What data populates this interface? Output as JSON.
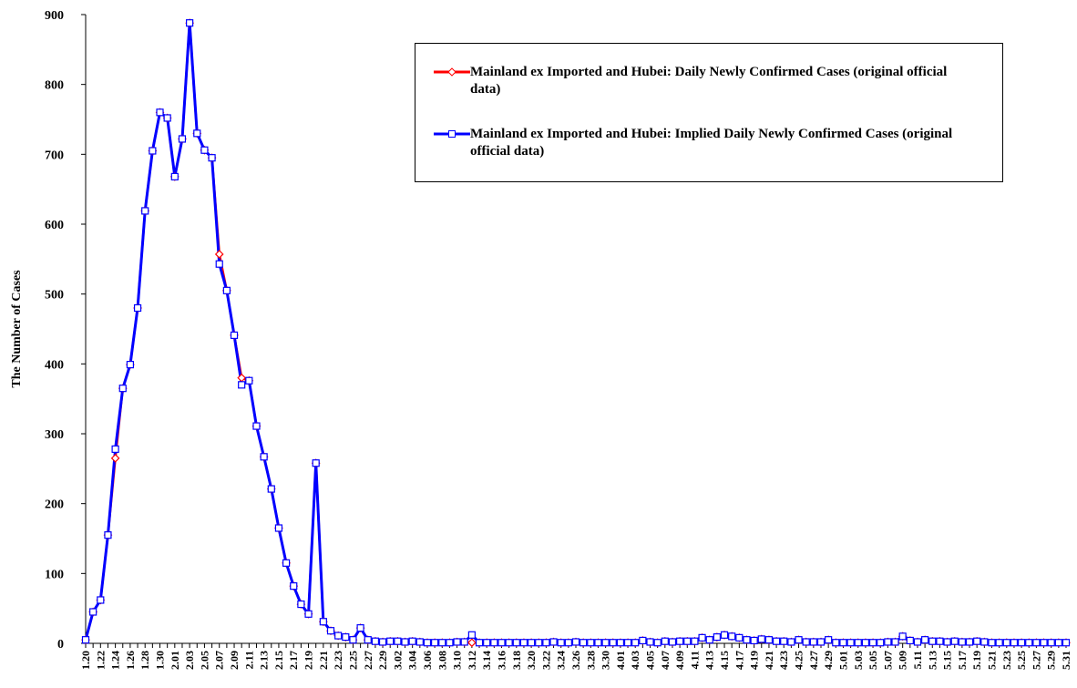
{
  "chart_data": {
    "type": "line",
    "ylabel": "The Number of Cases",
    "categories": [
      "1.20",
      null,
      "1.22",
      null,
      "1.24",
      null,
      "1.26",
      null,
      "1.28",
      null,
      "1.30",
      null,
      "2.01",
      null,
      "2.03",
      null,
      "2.05",
      null,
      "2.07",
      null,
      "2.09",
      null,
      "2.11",
      null,
      "2.13",
      null,
      "2.15",
      null,
      "2.17",
      null,
      "2.19",
      null,
      "2.21",
      null,
      "2.23",
      null,
      "2.25",
      null,
      "2.27",
      null,
      "2.29",
      null,
      "3.02",
      null,
      "3.04",
      null,
      "3.06",
      null,
      "3.08",
      null,
      "3.10",
      null,
      "3.12",
      null,
      "3.14",
      null,
      "3.16",
      null,
      "3.18",
      null,
      "3.20",
      null,
      "3.22",
      null,
      "3.24",
      null,
      "3.26",
      null,
      "3.28",
      null,
      "3.30",
      null,
      "4.01",
      null,
      "4.03",
      null,
      "4.05",
      null,
      "4.07",
      null,
      "4.09",
      null,
      "4.11",
      null,
      "4.13",
      null,
      "4.15",
      null,
      "4.17",
      null,
      "4.19",
      null,
      "4.21",
      null,
      "4.23",
      null,
      "4.25",
      null,
      "4.27",
      null,
      "4.29",
      null,
      "5.01",
      null,
      "5.03",
      null,
      "5.05",
      null,
      "5.07",
      null,
      "5.09",
      null,
      "5.11",
      null,
      "5.13",
      null,
      "5.15",
      null,
      "5.17",
      null,
      "5.19",
      null,
      "5.21",
      null,
      "5.23",
      null,
      "5.25",
      null,
      "5.27",
      null,
      "5.29",
      null,
      "5.31"
    ],
    "series": [
      {
        "name": "Mainland ex Imported and Hubei: Daily Newly Confirmed Cases (original official data)",
        "color": "#ff0000",
        "marker": "diamond",
        "values": [
          5,
          45,
          62,
          155,
          265,
          365,
          399,
          480,
          619,
          705,
          760,
          752,
          668,
          722,
          888,
          730,
          706,
          695,
          557,
          505,
          441,
          380,
          376,
          311,
          267,
          221,
          165,
          115,
          82,
          56,
          42,
          258,
          31,
          18,
          11,
          9,
          5,
          22,
          5,
          3,
          2,
          3,
          3,
          2,
          3,
          2,
          1,
          1,
          1,
          1,
          2,
          2,
          1,
          1,
          1,
          1,
          1,
          1,
          1,
          1,
          1,
          1,
          1,
          2,
          1,
          1,
          2,
          1,
          1,
          1,
          1,
          1,
          1,
          1,
          1,
          4,
          2,
          1,
          3,
          2,
          3,
          3,
          3,
          8,
          5,
          9,
          12,
          10,
          8,
          5,
          4,
          6,
          5,
          3,
          3,
          2,
          5,
          2,
          2,
          2,
          5,
          1,
          1,
          1,
          1,
          1,
          1,
          1,
          2,
          2,
          10,
          4,
          2,
          5,
          3,
          3,
          2,
          3,
          2,
          2,
          3,
          2,
          1,
          1,
          1,
          1,
          1,
          1,
          1,
          1,
          1,
          1,
          1
        ]
      },
      {
        "name": "Mainland ex Imported and Hubei: Implied Daily Newly Confirmed Cases (original official data)",
        "color": "#0000ff",
        "marker": "square",
        "values": [
          5,
          45,
          62,
          155,
          278,
          365,
          399,
          480,
          619,
          705,
          760,
          752,
          668,
          722,
          888,
          730,
          706,
          695,
          543,
          505,
          441,
          370,
          376,
          311,
          267,
          221,
          165,
          115,
          82,
          56,
          42,
          258,
          31,
          18,
          11,
          9,
          5,
          22,
          5,
          3,
          2,
          3,
          3,
          2,
          3,
          2,
          1,
          1,
          1,
          1,
          2,
          2,
          12,
          1,
          1,
          1,
          1,
          1,
          1,
          1,
          1,
          1,
          1,
          2,
          1,
          1,
          2,
          1,
          1,
          1,
          1,
          1,
          1,
          1,
          1,
          4,
          2,
          1,
          3,
          2,
          3,
          3,
          3,
          8,
          5,
          9,
          12,
          10,
          8,
          5,
          4,
          6,
          5,
          3,
          3,
          2,
          5,
          2,
          2,
          2,
          5,
          1,
          1,
          1,
          1,
          1,
          1,
          1,
          2,
          2,
          10,
          4,
          2,
          5,
          3,
          3,
          2,
          3,
          2,
          2,
          3,
          2,
          1,
          1,
          1,
          1,
          1,
          1,
          1,
          1,
          1,
          1,
          1
        ]
      }
    ],
    "ylim": [
      0,
      900
    ],
    "yticks": [
      0,
      100,
      200,
      300,
      400,
      500,
      600,
      700,
      800,
      900
    ],
    "legend": "upper right"
  }
}
